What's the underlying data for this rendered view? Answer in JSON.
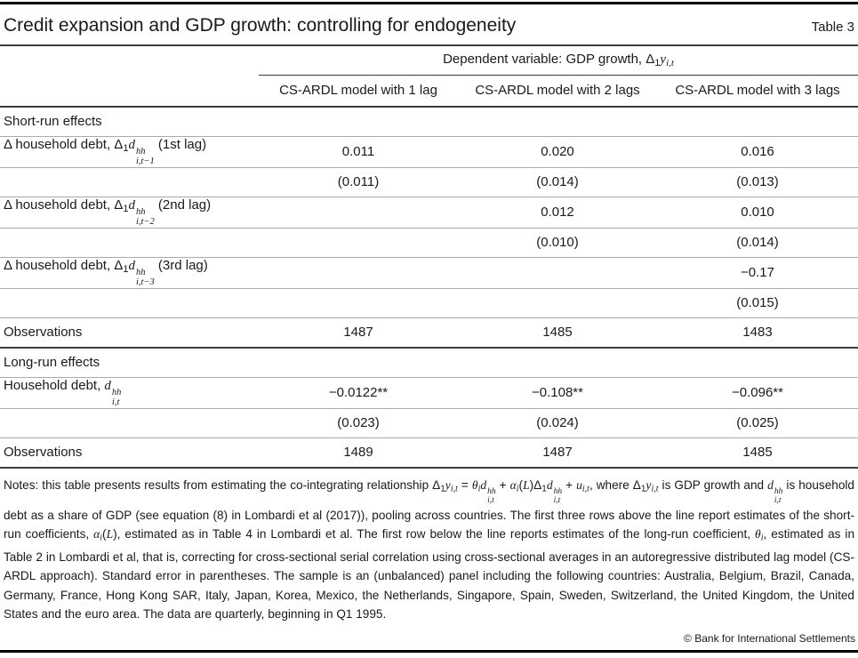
{
  "meta": {
    "title": "Credit expansion and GDP growth: controlling for endogeneity",
    "table_label": "Table 3"
  },
  "header": {
    "dependent_variable": [
      {
        "t": "Dependent variable: GDP growth,  "
      },
      {
        "t": "Δ"
      },
      {
        "t": "1",
        "style": "sub"
      },
      {
        "t": "y",
        "style": "i"
      },
      {
        "t": "i,t",
        "style": "isub"
      }
    ],
    "columns": [
      "CS-ARDL model with 1 lag",
      "CS-ARDL model with 2 lags",
      "CS-ARDL model with 3 lags"
    ]
  },
  "table": {
    "rows": [
      {
        "kind": "section",
        "label": "Short-run effects"
      },
      {
        "kind": "coef",
        "label": [
          {
            "t": "Δ household debt, "
          },
          {
            "t": "Δ"
          },
          {
            "t": "1",
            "style": "sub"
          },
          {
            "t": "d",
            "style": "i"
          },
          {
            "stack": {
              "sup": "hh",
              "sub": "i,t−1"
            }
          },
          {
            "t": " (1st lag)"
          }
        ],
        "values": [
          "0.011",
          "0.020",
          "0.016"
        ]
      },
      {
        "kind": "se",
        "values": [
          "(0.011)",
          "(0.014)",
          "(0.013)"
        ]
      },
      {
        "kind": "coef",
        "label": [
          {
            "t": "Δ household debt, "
          },
          {
            "t": "Δ"
          },
          {
            "t": "1",
            "style": "sub"
          },
          {
            "t": "d",
            "style": "i"
          },
          {
            "stack": {
              "sup": "hh",
              "sub": "i,t−2"
            }
          },
          {
            "t": " (2nd lag)"
          }
        ],
        "values": [
          "",
          "0.012",
          "0.010"
        ]
      },
      {
        "kind": "se",
        "values": [
          "",
          "(0.010)",
          "(0.014)"
        ]
      },
      {
        "kind": "coef",
        "label": [
          {
            "t": "Δ household debt, "
          },
          {
            "t": "Δ"
          },
          {
            "t": "1",
            "style": "sub"
          },
          {
            "t": "d",
            "style": "i"
          },
          {
            "stack": {
              "sup": "hh",
              "sub": "i,t−3"
            }
          },
          {
            "t": "  (3rd lag)"
          }
        ],
        "values": [
          "",
          "",
          "−0.17"
        ]
      },
      {
        "kind": "se",
        "values": [
          "",
          "",
          "(0.015)"
        ]
      },
      {
        "kind": "obs",
        "label": "Observations",
        "values": [
          "1487",
          "1485",
          "1483"
        ]
      },
      {
        "kind": "section",
        "label": "Long-run effects"
      },
      {
        "kind": "coef",
        "label": [
          {
            "t": "Household debt, "
          },
          {
            "t": "d",
            "style": "i"
          },
          {
            "stack": {
              "sup": "hh",
              "sub": "i,t"
            }
          }
        ],
        "values": [
          "−0.0122**",
          "−0.108**",
          "−0.096**"
        ]
      },
      {
        "kind": "se",
        "values": [
          "(0.023)",
          "(0.024)",
          "(0.025)"
        ]
      },
      {
        "kind": "obs",
        "label": "Observations",
        "values": [
          "1489",
          "1487",
          "1485"
        ]
      }
    ]
  },
  "notes": [
    {
      "t": "Notes: this table presents results from estimating the co-integrating relationship "
    },
    {
      "t": "Δ"
    },
    {
      "t": "1",
      "style": "sub"
    },
    {
      "t": "y",
      "style": "i"
    },
    {
      "t": "i,t",
      "style": "isub"
    },
    {
      "t": " = "
    },
    {
      "t": "θ",
      "style": "i"
    },
    {
      "t": "i",
      "style": "isub"
    },
    {
      "t": "d",
      "style": "i"
    },
    {
      "stack": {
        "sup": "hh",
        "sub": "i,t"
      }
    },
    {
      "t": " + "
    },
    {
      "t": "α",
      "style": "i"
    },
    {
      "t": "i",
      "style": "isub"
    },
    {
      "t": "("
    },
    {
      "t": "L",
      "style": "i"
    },
    {
      "t": ")"
    },
    {
      "t": "Δ"
    },
    {
      "t": "1",
      "style": "sub"
    },
    {
      "t": "d",
      "style": "i"
    },
    {
      "stack": {
        "sup": "hh",
        "sub": "i,t"
      }
    },
    {
      "t": " + "
    },
    {
      "t": "u",
      "style": "i"
    },
    {
      "t": "i,t",
      "style": "isub"
    },
    {
      "t": ", where "
    },
    {
      "t": "Δ"
    },
    {
      "t": "1",
      "style": "sub"
    },
    {
      "t": "y",
      "style": "i"
    },
    {
      "t": "i,t",
      "style": "isub"
    },
    {
      "t": " is GDP growth and "
    },
    {
      "t": "d",
      "style": "i"
    },
    {
      "stack": {
        "sup": "hh",
        "sub": "i,t"
      }
    },
    {
      "t": " is household debt as a share of GDP (see equation (8) in Lombardi et al (2017)), pooling across countries. The first three rows above the line report estimates of the short-run coefficients, "
    },
    {
      "t": "α",
      "style": "i"
    },
    {
      "t": "i",
      "style": "isub"
    },
    {
      "t": "("
    },
    {
      "t": "L",
      "style": "i"
    },
    {
      "t": ")"
    },
    {
      "t": ", estimated as in Table 4 in Lombardi et al. The first row below the line reports estimates of the long-run coefficient, "
    },
    {
      "t": "θ",
      "style": "i"
    },
    {
      "t": "i",
      "style": "isub"
    },
    {
      "t": ", estimated as in Table 2 in Lombardi et al, that is, correcting for cross-sectional serial correlation using cross-sectional averages in an autoregressive distributed lag model (CS-ARDL approach). Standard error in parentheses. The sample is an (unbalanced) panel including the following countries: Australia, Belgium, Brazil, Canada, Germany, France, Hong Kong SAR, Italy, Japan, Korea, Mexico, the Netherlands, Singapore, Spain, Sweden, Switzerland, the United Kingdom, the United States and the euro area. The data are quarterly, beginning in Q1 1995."
    }
  ],
  "footer": {
    "copyright": "© Bank for International Settlements"
  },
  "colors": {
    "text": "#1a1a1a",
    "rule_heavy": "#000000",
    "rule_dark": "#3c3c3c",
    "rule_light": "#ababab",
    "background": "#ffffff"
  }
}
